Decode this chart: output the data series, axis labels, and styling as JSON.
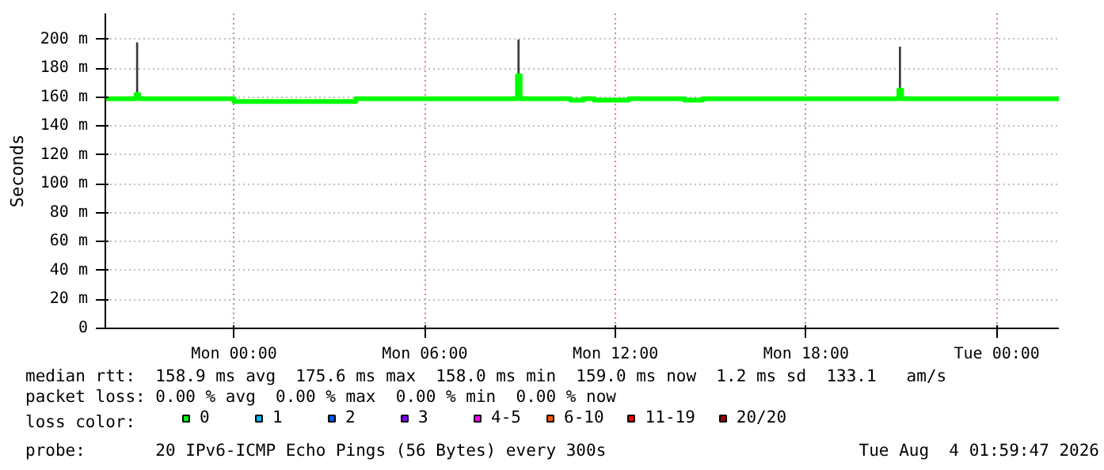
{
  "chart_data": {
    "type": "step",
    "ylabel": "Seconds",
    "legend_title": "loss color:",
    "legend": "bottom",
    "grid": true,
    "xlim": [
      "2026-08-02T19:57",
      "2026-08-04T01:57"
    ],
    "xticks": [
      {
        "value": "2026-08-03T00:00",
        "label": "Mon 00:00"
      },
      {
        "value": "2026-08-03T06:00",
        "label": "Mon 06:00"
      },
      {
        "value": "2026-08-03T12:00",
        "label": "Mon 12:00"
      },
      {
        "value": "2026-08-03T18:00",
        "label": "Mon 18:00"
      },
      {
        "value": "2026-08-04T00:00",
        "label": "Tue 00:00"
      }
    ],
    "ylim": [
      0,
      218
    ],
    "yticks": [
      0,
      {
        "value": 20,
        "label": "20 m"
      },
      {
        "value": 40,
        "label": "40 m"
      },
      {
        "value": 60,
        "label": "60 m"
      },
      {
        "value": 80,
        "label": "80 m"
      },
      {
        "value": 100,
        "label": "100 m"
      },
      {
        "value": 120,
        "label": "120 m"
      },
      {
        "value": 140,
        "label": "140 m"
      },
      {
        "value": 160,
        "label": "160 m"
      },
      {
        "value": 180,
        "label": "180 m"
      },
      {
        "value": 200,
        "label": "200 m"
      }
    ],
    "series": [
      {
        "type": "bar",
        "color": "#3a3a3a",
        "x": [
          "2026-08-02T20:57",
          "2026-08-03T08:57",
          "2026-08-03T20:57"
        ],
        "base": [
          158,
          158,
          158
        ],
        "values": [
          40,
          42,
          37
        ]
      },
      {
        "name": "0",
        "color": "#00ff00",
        "x": [
          "2026-08-02T19:57",
          "2026-08-02T20:55",
          "2026-08-02T21:00",
          "2026-08-03T00:00",
          "2026-08-03T03:50",
          "2026-08-03T08:55",
          "2026-08-03T09:00",
          "2026-08-03T10:35",
          "2026-08-03T11:00",
          "2026-08-03T11:20",
          "2026-08-03T12:25",
          "2026-08-03T14:10",
          "2026-08-03T14:45",
          "2026-08-03T20:55",
          "2026-08-03T21:00",
          "2026-08-04T01:57"
        ],
        "values": [
          159,
          162,
          159,
          157,
          159,
          175,
          159,
          158,
          159,
          158,
          159,
          158,
          159,
          165,
          159,
          159
        ]
      },
      {
        "name": "1",
        "color": "#00b8ff"
      },
      {
        "name": "2",
        "color": "#0059ff"
      },
      {
        "name": "3",
        "color": "#7e00ff"
      },
      {
        "name": "4-5",
        "color": "#ff00ff"
      },
      {
        "name": "6-10",
        "color": "#ff5500"
      },
      {
        "name": "11-19",
        "color": "#ff0000"
      },
      {
        "name": "20/20",
        "color": "#a10000"
      }
    ],
    "annotations": [
      "median rtt:  158.9 ms avg  175.6 ms max  158.0 ms min  159.0 ms now  1.2 ms sd  133.1   am/s",
      "packet loss: 0.00 % avg  0.00 % max  0.00 % min  0.00 % now",
      "probe:       20 IPv6-ICMP Echo Pings (56 Bytes) every 300s",
      "Tue Aug  4 01:59:47 2026"
    ]
  }
}
